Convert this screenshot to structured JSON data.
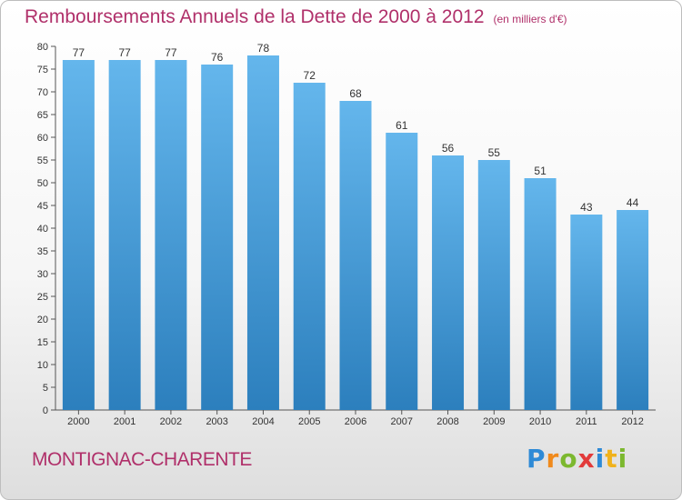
{
  "chart_data": {
    "type": "bar",
    "title": "Remboursements Annuels de la Dette de 2000 à 2012",
    "subtitle": "(en milliers d'€)",
    "categories": [
      "2000",
      "2001",
      "2002",
      "2003",
      "2004",
      "2005",
      "2006",
      "2007",
      "2008",
      "2009",
      "2010",
      "2011",
      "2012"
    ],
    "values": [
      77,
      77,
      77,
      76,
      78,
      72,
      68,
      61,
      56,
      55,
      51,
      43,
      44
    ],
    "ylim": [
      0,
      80
    ],
    "yticks": [
      0,
      5,
      10,
      15,
      20,
      25,
      30,
      35,
      40,
      45,
      50,
      55,
      60,
      65,
      70,
      75,
      80
    ],
    "xlabel": "",
    "ylabel": "",
    "grid": false,
    "data_labels": true
  },
  "footer": {
    "commune": "MONTIGNAC-CHARENTE",
    "logo_letters": [
      "P",
      "r",
      "o",
      "x",
      "i",
      "t",
      "i"
    ]
  },
  "colors": {
    "title": "#b0306a",
    "bar_top": "#64b6ec",
    "bar_bottom": "#2c7fbd",
    "logo": [
      "#2e8ad6",
      "#f08a1c",
      "#7cb82f",
      "#e23a3a",
      "#2e8ad6",
      "#f0b21c",
      "#7cb82f"
    ]
  }
}
